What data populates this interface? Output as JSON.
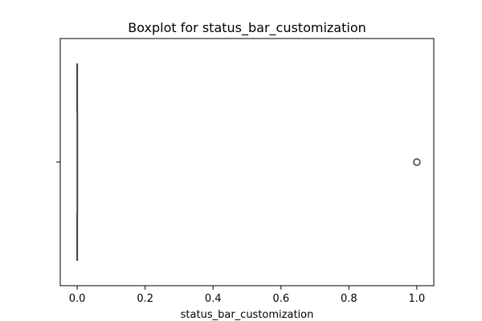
{
  "chart_data": {
    "type": "boxplot",
    "orientation": "horizontal",
    "title": "Boxplot for status_bar_customization",
    "xlabel": "status_bar_customization",
    "ylabel": "",
    "xlim": [
      -0.05,
      1.05
    ],
    "xticks": [
      0.0,
      0.2,
      0.4,
      0.6,
      0.8,
      1.0
    ],
    "xtick_labels": [
      "0.0",
      "0.2",
      "0.4",
      "0.6",
      "0.8",
      "1.0"
    ],
    "grid": false,
    "box": {
      "min": 0.0,
      "q1": 0.0,
      "median": 0.0,
      "q3": 0.0,
      "max": 0.0,
      "outliers": [
        1.0
      ]
    },
    "colors": {
      "box_edge": "#3f3f3f",
      "axis": "#000000"
    }
  }
}
